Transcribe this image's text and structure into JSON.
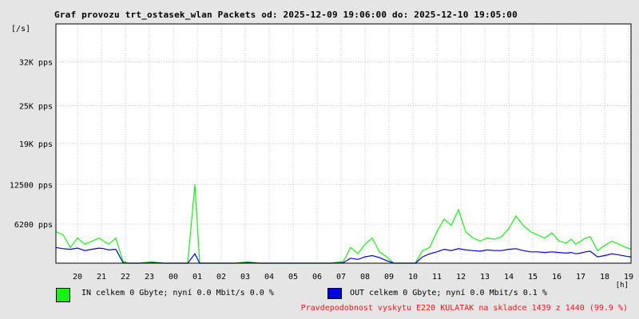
{
  "title": "Graf provozu trt_ostasek_wlan Packets od: 2025-12-09 19:06:00 do: 2025-12-10 19:05:00",
  "colors": {
    "in": "#19f019",
    "out": "#0000e0",
    "footer": "#e31a1a",
    "background": "#e5e5e5",
    "plot": "#ffffff",
    "grid": "#c0c0c0"
  },
  "legend": [
    {
      "label": "IN celkem 0 Gbyte; nyní   0.0 Mbit/s 0.0 %",
      "color": "#19f019"
    },
    {
      "label": "OUT celkem 0 Gbyte; nyní   0.0 Mbit/s 0.1 %",
      "color": "#0000e0"
    }
  ],
  "footer": "Pravdepodobnost vyskytu E220 KULATAK na skladce 1439 z 1440 (99.9 %)",
  "chart_data": {
    "type": "line",
    "title": "Graf provozu trt_ostasek_wlan Packets od: 2025-12-09 19:06:00 do: 2025-12-10 19:05:00",
    "ylabel": "[/s]",
    "xlabel": "[h]",
    "ylim": [
      0,
      38000
    ],
    "y_ticks": [
      6200,
      12500,
      19000,
      25000,
      32000
    ],
    "y_tick_labels": [
      "6200 pps",
      "12500 pps",
      "19K pps",
      "25K pps",
      "32K pps"
    ],
    "x_ticks": [
      "20",
      "21",
      "22",
      "23",
      "00",
      "01",
      "02",
      "03",
      "04",
      "05",
      "06",
      "07",
      "08",
      "09",
      "10",
      "11",
      "12",
      "13",
      "14",
      "15",
      "16",
      "17",
      "18",
      "19"
    ],
    "grid": true,
    "x_hours_from_start": [
      0,
      0.3,
      0.6,
      0.9,
      1.2,
      1.5,
      1.8,
      2.0,
      2.2,
      2.5,
      2.8,
      3.0,
      3.5,
      4.0,
      4.5,
      5.0,
      5.3,
      5.5,
      5.8,
      6.0,
      6.5,
      7.0,
      7.5,
      8.0,
      8.5,
      9.0,
      9.5,
      10.0,
      10.5,
      11.0,
      11.5,
      12.0,
      12.3,
      12.6,
      12.9,
      13.2,
      13.5,
      13.8,
      14.1,
      14.4,
      14.7,
      15.0,
      15.3,
      15.6,
      15.9,
      16.2,
      16.5,
      16.8,
      17.1,
      17.4,
      17.7,
      18.0,
      18.3,
      18.6,
      18.9,
      19.2,
      19.5,
      19.8,
      20.1,
      20.4,
      20.7,
      21.0,
      21.3,
      21.5,
      21.7,
      21.9,
      22.1,
      22.3,
      22.6,
      22.9,
      23.2,
      23.5,
      23.8,
      24.0
    ],
    "series": [
      {
        "name": "IN",
        "values": [
          5000,
          4500,
          2500,
          4000,
          3000,
          3500,
          4000,
          3500,
          3000,
          4000,
          300,
          0,
          0,
          200,
          0,
          0,
          0,
          0,
          12500,
          0,
          0,
          0,
          0,
          200,
          0,
          0,
          0,
          0,
          0,
          0,
          0,
          300,
          2500,
          1500,
          3000,
          4000,
          1800,
          1000,
          0,
          0,
          0,
          0,
          2000,
          2500,
          5000,
          7000,
          6000,
          8500,
          5000,
          4000,
          3500,
          4000,
          3800,
          4200,
          5500,
          7500,
          6000,
          5000,
          4500,
          4000,
          4800,
          3500,
          3200,
          3800,
          3000,
          3500,
          4000,
          4200,
          2000,
          2800,
          3500,
          3000,
          2500,
          2200
        ]
      },
      {
        "name": "OUT",
        "values": [
          2500,
          2300,
          2200,
          2400,
          2000,
          2200,
          2400,
          2300,
          2100,
          2200,
          100,
          0,
          0,
          100,
          0,
          0,
          0,
          0,
          1500,
          0,
          0,
          0,
          0,
          100,
          0,
          0,
          0,
          0,
          0,
          0,
          0,
          100,
          800,
          600,
          1000,
          1200,
          900,
          400,
          0,
          0,
          0,
          0,
          1000,
          1500,
          1800,
          2200,
          2000,
          2300,
          2100,
          2000,
          1900,
          2100,
          2000,
          2000,
          2200,
          2300,
          2000,
          1800,
          1800,
          1700,
          1800,
          1700,
          1600,
          1700,
          1500,
          1600,
          1800,
          1900,
          1000,
          1200,
          1500,
          1300,
          1100,
          1000
        ]
      }
    ]
  }
}
